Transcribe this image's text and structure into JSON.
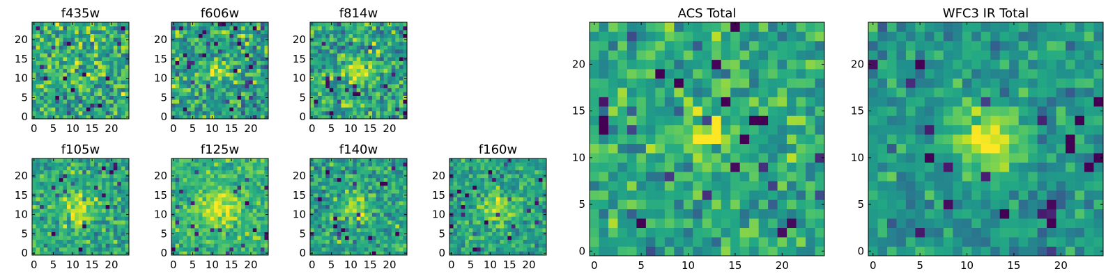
{
  "chart_data": {
    "type": "heatmap",
    "colormap": "viridis",
    "color_range": [
      0,
      1
    ],
    "grid": false,
    "panels": [
      {
        "title": "f435w",
        "xlim": [
          -0.5,
          24.5
        ],
        "ylim": [
          -0.5,
          24.5
        ],
        "xticks": [
          0,
          5,
          10,
          15,
          20
        ],
        "yticks": [
          0,
          5,
          10,
          15,
          20
        ],
        "xticklabels": [
          "0",
          "5",
          "10",
          "15",
          "20"
        ],
        "yticklabels": [
          "0",
          "5",
          "10",
          "15",
          "20"
        ],
        "grid_size": [
          25,
          25
        ],
        "source_size": [
          25,
          25
        ],
        "pixel_noise": 0.55,
        "source_amplitude": 0.05,
        "source_center": [
          12,
          12
        ],
        "source_sigma": 3.0,
        "base_level": 0.62,
        "seed": 11
      },
      {
        "title": "f606w",
        "xlim": [
          -0.5,
          24.5
        ],
        "ylim": [
          -0.5,
          24.5
        ],
        "xticks": [
          0,
          5,
          10,
          15,
          20
        ],
        "yticks": [
          0,
          5,
          10,
          15,
          20
        ],
        "xticklabels": [
          "0",
          "5",
          "10",
          "15",
          "20"
        ],
        "yticklabels": [
          "0",
          "5",
          "10",
          "15",
          "20"
        ],
        "grid_size": [
          25,
          25
        ],
        "pixel_noise": 0.55,
        "source_amplitude": 0.35,
        "source_center": [
          12,
          12
        ],
        "source_sigma": 2.0,
        "base_level": 0.58,
        "seed": 23
      },
      {
        "title": "f814w",
        "xlim": [
          -0.5,
          24.5
        ],
        "ylim": [
          -0.5,
          24.5
        ],
        "xticks": [
          0,
          5,
          10,
          15,
          20
        ],
        "yticks": [
          0,
          5,
          10,
          15,
          20
        ],
        "xticklabels": [
          "0",
          "5",
          "10",
          "15",
          "20"
        ],
        "yticklabels": [
          "0",
          "5",
          "10",
          "15",
          "20"
        ],
        "grid_size": [
          25,
          25
        ],
        "pixel_noise": 0.55,
        "source_amplitude": 0.3,
        "source_center": [
          12,
          12
        ],
        "source_sigma": 2.2,
        "base_level": 0.6,
        "seed": 37
      },
      {
        "title": "f105w",
        "xlim": [
          -0.5,
          24.5
        ],
        "ylim": [
          -0.5,
          24.5
        ],
        "xticks": [
          0,
          5,
          10,
          15,
          20
        ],
        "yticks": [
          0,
          5,
          10,
          15,
          20
        ],
        "xticklabels": [
          "0",
          "5",
          "10",
          "15",
          "20"
        ],
        "yticklabels": [
          "0",
          "5",
          "10",
          "15",
          "20"
        ],
        "grid_size": [
          25,
          25
        ],
        "pixel_noise": 0.45,
        "source_amplitude": 0.35,
        "source_center": [
          12,
          12
        ],
        "source_sigma": 3.0,
        "base_level": 0.6,
        "seed": 41
      },
      {
        "title": "f125w",
        "xlim": [
          -0.5,
          24.5
        ],
        "ylim": [
          -0.5,
          24.5
        ],
        "xticks": [
          0,
          5,
          10,
          15,
          20
        ],
        "yticks": [
          0,
          5,
          10,
          15,
          20
        ],
        "xticklabels": [
          "0",
          "5",
          "10",
          "15",
          "20"
        ],
        "yticklabels": [
          "0",
          "5",
          "10",
          "15",
          "20"
        ],
        "grid_size": [
          25,
          25
        ],
        "pixel_noise": 0.35,
        "source_amplitude": 0.3,
        "source_center": [
          12,
          12
        ],
        "source_sigma": 3.2,
        "base_level": 0.66,
        "seed": 53
      },
      {
        "title": "f140w",
        "xlim": [
          -0.5,
          24.5
        ],
        "ylim": [
          -0.5,
          24.5
        ],
        "xticks": [
          0,
          5,
          10,
          15,
          20
        ],
        "yticks": [
          0,
          5,
          10,
          15,
          20
        ],
        "xticklabels": [
          "0",
          "5",
          "10",
          "15",
          "20"
        ],
        "yticklabels": [
          "0",
          "5",
          "10",
          "15",
          "20"
        ],
        "grid_size": [
          25,
          25
        ],
        "pixel_noise": 0.45,
        "source_amplitude": 0.3,
        "source_center": [
          12,
          12
        ],
        "source_sigma": 2.5,
        "base_level": 0.57,
        "seed": 67
      },
      {
        "title": "f160w",
        "xlim": [
          -0.5,
          24.5
        ],
        "ylim": [
          -0.5,
          24.5
        ],
        "xticks": [
          0,
          5,
          10,
          15,
          20
        ],
        "yticks": [
          0,
          5,
          10,
          15,
          20
        ],
        "xticklabels": [
          "0",
          "5",
          "10",
          "15",
          "20"
        ],
        "yticklabels": [
          "0",
          "5",
          "10",
          "15",
          "20"
        ],
        "grid_size": [
          25,
          25
        ],
        "pixel_noise": 0.4,
        "source_amplitude": 0.35,
        "source_center": [
          12,
          12
        ],
        "source_sigma": 2.6,
        "base_level": 0.58,
        "seed": 79
      },
      {
        "title": "ACS Total",
        "xlim": [
          -0.5,
          24.5
        ],
        "ylim": [
          -0.5,
          24.5
        ],
        "xticks": [
          0,
          5,
          10,
          15,
          20
        ],
        "yticks": [
          0,
          5,
          10,
          15,
          20
        ],
        "xticklabels": [
          "0",
          "5",
          "10",
          "15",
          "20"
        ],
        "yticklabels": [
          "0",
          "5",
          "10",
          "15",
          "20"
        ],
        "grid_size": [
          25,
          25
        ],
        "pixel_noise": 0.45,
        "source_amplitude": 0.35,
        "source_center": [
          12,
          12
        ],
        "source_sigma": 2.2,
        "base_level": 0.6,
        "seed": 97
      },
      {
        "title": "WFC3 IR Total",
        "xlim": [
          -0.5,
          24.5
        ],
        "ylim": [
          -0.5,
          24.5
        ],
        "xticks": [
          0,
          5,
          10,
          15,
          20
        ],
        "yticks": [
          0,
          5,
          10,
          15,
          20
        ],
        "xticklabels": [
          "0",
          "5",
          "10",
          "15",
          "20"
        ],
        "yticklabels": [
          "0",
          "5",
          "10",
          "15",
          "20"
        ],
        "grid_size": [
          25,
          25
        ],
        "pixel_noise": 0.35,
        "source_amplitude": 0.45,
        "source_center": [
          12,
          12
        ],
        "source_sigma": 2.6,
        "base_level": 0.52,
        "seed": 113
      }
    ]
  }
}
